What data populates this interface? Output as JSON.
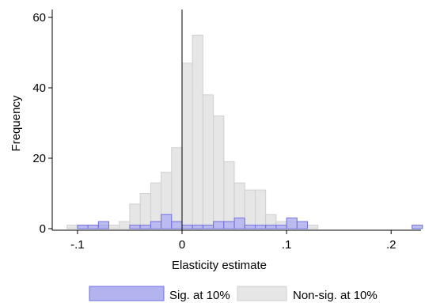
{
  "chart_data": {
    "type": "bar",
    "subtype": "overlaid histogram",
    "xlabel": "Elasticity estimate",
    "ylabel": "Frequency",
    "xlim": [
      -0.12,
      0.23
    ],
    "ylim": [
      0,
      60
    ],
    "x_ticks": [
      {
        "value": -0.1,
        "label": "-.1"
      },
      {
        "value": 0,
        "label": "0"
      },
      {
        "value": 0.1,
        "label": ".1"
      },
      {
        "value": 0.2,
        "label": ".2"
      }
    ],
    "y_ticks": [
      {
        "value": 0,
        "label": "0"
      },
      {
        "value": 20,
        "label": "20"
      },
      {
        "value": 40,
        "label": "40"
      },
      {
        "value": 60,
        "label": "60"
      }
    ],
    "bin_width": 0.01,
    "reference_line_x": 0,
    "grid": false,
    "legend_position": "bottom",
    "series": [
      {
        "name": "Sig. at 10%",
        "color": "#b3b3f0",
        "edge_color": "#7070e0",
        "bins": [
          {
            "x0": -0.1,
            "count": 1
          },
          {
            "x0": -0.09,
            "count": 1
          },
          {
            "x0": -0.08,
            "count": 1
          },
          {
            "x0": -0.08,
            "count": 1
          },
          {
            "x0": -0.08,
            "count": 2
          },
          {
            "x0": -0.05,
            "count": 1
          },
          {
            "x0": -0.04,
            "count": 1
          },
          {
            "x0": -0.03,
            "count": 2
          },
          {
            "x0": -0.02,
            "count": 4
          },
          {
            "x0": -0.01,
            "count": 2
          },
          {
            "x0": 0.0,
            "count": 1
          },
          {
            "x0": 0.01,
            "count": 1
          },
          {
            "x0": 0.02,
            "count": 1
          },
          {
            "x0": 0.03,
            "count": 2
          },
          {
            "x0": 0.04,
            "count": 2
          },
          {
            "x0": 0.05,
            "count": 3
          },
          {
            "x0": 0.06,
            "count": 1
          },
          {
            "x0": 0.07,
            "count": 1
          },
          {
            "x0": 0.08,
            "count": 1
          },
          {
            "x0": 0.09,
            "count": 1
          },
          {
            "x0": 0.1,
            "count": 3
          },
          {
            "x0": 0.11,
            "count": 2
          },
          {
            "x0": 0.22,
            "count": 1
          }
        ]
      },
      {
        "name": "Non-sig. at 10%",
        "color": "#e6e6e6",
        "edge_color": "#cfcfcf",
        "bins": [
          {
            "x0": -0.11,
            "count": 1
          },
          {
            "x0": -0.1,
            "count": 1
          },
          {
            "x0": -0.09,
            "count": 1
          },
          {
            "x0": -0.08,
            "count": 1
          },
          {
            "x0": -0.07,
            "count": 1
          },
          {
            "x0": -0.06,
            "count": 2
          },
          {
            "x0": -0.05,
            "count": 7
          },
          {
            "x0": -0.04,
            "count": 10
          },
          {
            "x0": -0.03,
            "count": 13
          },
          {
            "x0": -0.02,
            "count": 16
          },
          {
            "x0": -0.01,
            "count": 23
          },
          {
            "x0": 0.0,
            "count": 47
          },
          {
            "x0": 0.01,
            "count": 55
          },
          {
            "x0": 0.02,
            "count": 38
          },
          {
            "x0": 0.03,
            "count": 32
          },
          {
            "x0": 0.04,
            "count": 19
          },
          {
            "x0": 0.05,
            "count": 13
          },
          {
            "x0": 0.06,
            "count": 11
          },
          {
            "x0": 0.07,
            "count": 11
          },
          {
            "x0": 0.08,
            "count": 4
          },
          {
            "x0": 0.09,
            "count": 2
          },
          {
            "x0": 0.1,
            "count": 2
          },
          {
            "x0": 0.11,
            "count": 1
          },
          {
            "x0": 0.12,
            "count": 1
          }
        ]
      }
    ]
  }
}
